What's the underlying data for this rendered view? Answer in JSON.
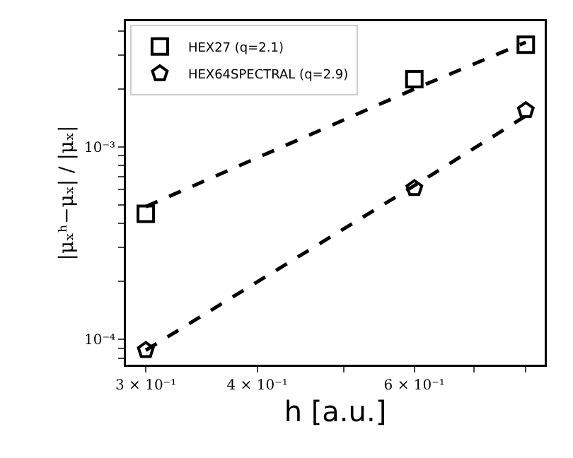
{
  "chart_data": {
    "type": "scatter",
    "xlabel": "h [a.u.]",
    "ylabel": "|μₓʰ−μₓ| / |μₓ|",
    "log": "xy",
    "grid": false,
    "legend": "top left",
    "xlim": [
      0.285,
      0.84
    ],
    "xticks": [
      {
        "value": 0.3,
        "label": "3 × 10⁻¹"
      },
      {
        "value": 0.4,
        "label": "4 × 10⁻¹"
      },
      {
        "value": 0.5,
        "label": null
      },
      {
        "value": 0.6,
        "label": "6 × 10⁻¹"
      },
      {
        "value": 0.7,
        "label": null
      },
      {
        "value": 0.8,
        "label": null
      }
    ],
    "ylim": [
      7.4e-05,
      0.0045
    ],
    "yticks": [
      {
        "value": 8e-05,
        "label": null
      },
      {
        "value": 9e-05,
        "label": null
      },
      {
        "value": 0.0001,
        "label": "10⁻⁴"
      },
      {
        "value": 0.0002,
        "label": null
      },
      {
        "value": 0.0003,
        "label": null
      },
      {
        "value": 0.0004,
        "label": null
      },
      {
        "value": 0.0005,
        "label": null
      },
      {
        "value": 0.0006,
        "label": null
      },
      {
        "value": 0.0007,
        "label": null
      },
      {
        "value": 0.0008,
        "label": null
      },
      {
        "value": 0.0009,
        "label": null
      },
      {
        "value": 0.001,
        "label": "10⁻³"
      },
      {
        "value": 0.002,
        "label": null
      },
      {
        "value": 0.003,
        "label": null
      },
      {
        "value": 0.004,
        "label": null
      }
    ],
    "x": [
      0.3,
      0.6,
      0.8
    ],
    "series": [
      {
        "name": "HEX27 (q=2.1)",
        "color": "#000000",
        "marker": "square",
        "values": [
          0.00045,
          0.00225,
          0.0034
        ]
      },
      {
        "name": "HEX64SPECTRAL (q=2.9)",
        "color": "#000000",
        "values": [
          8.8e-05,
          0.00061,
          0.00155
        ]
      },
      {
        "type": "line",
        "color": "#000000",
        "line_style": "dashed",
        "values": [
          0.00049,
          0.002,
          0.0035
        ]
      },
      {
        "type": "line",
        "color": "#000000",
        "line_style": "dashed",
        "values": [
          8.8e-05,
          0.00063,
          0.00145
        ]
      }
    ]
  }
}
